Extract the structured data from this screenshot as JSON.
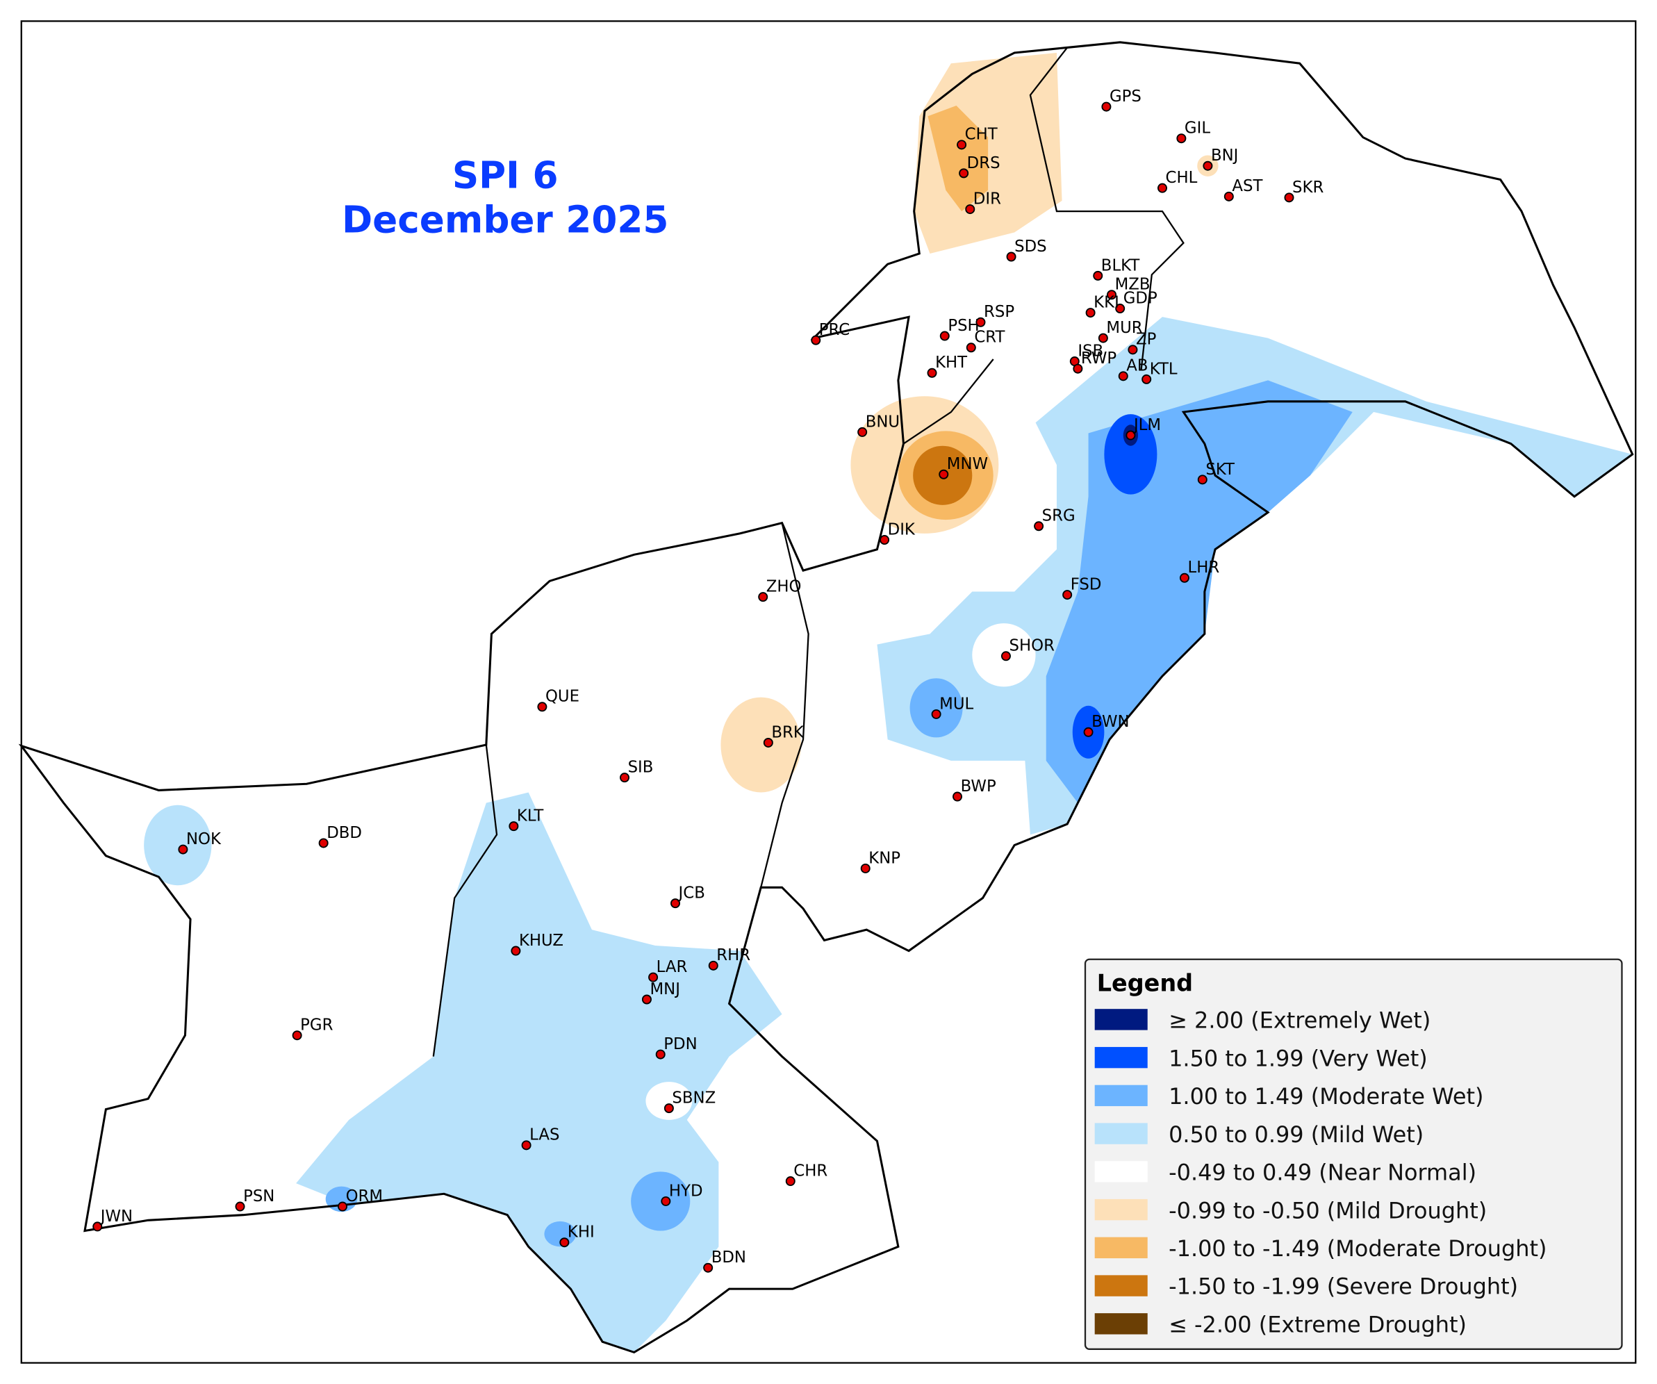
{
  "map": {
    "title": "SPI 6",
    "subtitle": "December 2025",
    "legend": {
      "title": "Legend",
      "items": [
        {
          "label": "≥ 2.00 (Extremely Wet)",
          "color": "#001a80"
        },
        {
          "label": "1.50 to 1.99 (Very Wet)",
          "color": "#0050ff"
        },
        {
          "label": "1.00 to 1.49 (Moderate Wet)",
          "color": "#6cb4ff"
        },
        {
          "label": "0.50 to 0.99 (Mild Wet)",
          "color": "#b8e2fb"
        },
        {
          "label": "-0.49 to 0.49 (Near Normal)",
          "color": "#ffffff"
        },
        {
          "label": "-0.99 to -0.50 (Mild Drought)",
          "color": "#fde0b8"
        },
        {
          "label": "-1.00 to -1.49 (Moderate Drought)",
          "color": "#f7b964"
        },
        {
          "label": "-1.50 to -1.99 (Severe Drought)",
          "color": "#cc7610"
        },
        {
          "label": "≤ -2.00 (Extreme Drought)",
          "color": "#6b3f05"
        }
      ]
    },
    "stations": [
      "GPS",
      "GIL",
      "BNJ",
      "CHL",
      "AST",
      "SKR",
      "CHT",
      "DRS",
      "DIR",
      "SDS",
      "BLKT",
      "MZB",
      "GDP",
      "KKI",
      "MUR",
      "ISB",
      "ZP",
      "RWP",
      "AB",
      "KTL",
      "PRC",
      "PSH",
      "RSP",
      "CRT",
      "KHT",
      "BNU",
      "MNW",
      "DIK",
      "JLM",
      "SKT",
      "SRG",
      "LHR",
      "FSD",
      "ZHO",
      "SHOR",
      "MUL",
      "BWN",
      "QUE",
      "BRK",
      "SIB",
      "BWP",
      "KLT",
      "NOK",
      "DBD",
      "KNP",
      "JCB",
      "KHUZ",
      "LAR",
      "RHR",
      "MNJ",
      "PGR",
      "PDN",
      "SBNZ",
      "LAS",
      "CHR",
      "HYD",
      "PSN",
      "ORM",
      "JWN",
      "KHI",
      "BDN"
    ]
  }
}
